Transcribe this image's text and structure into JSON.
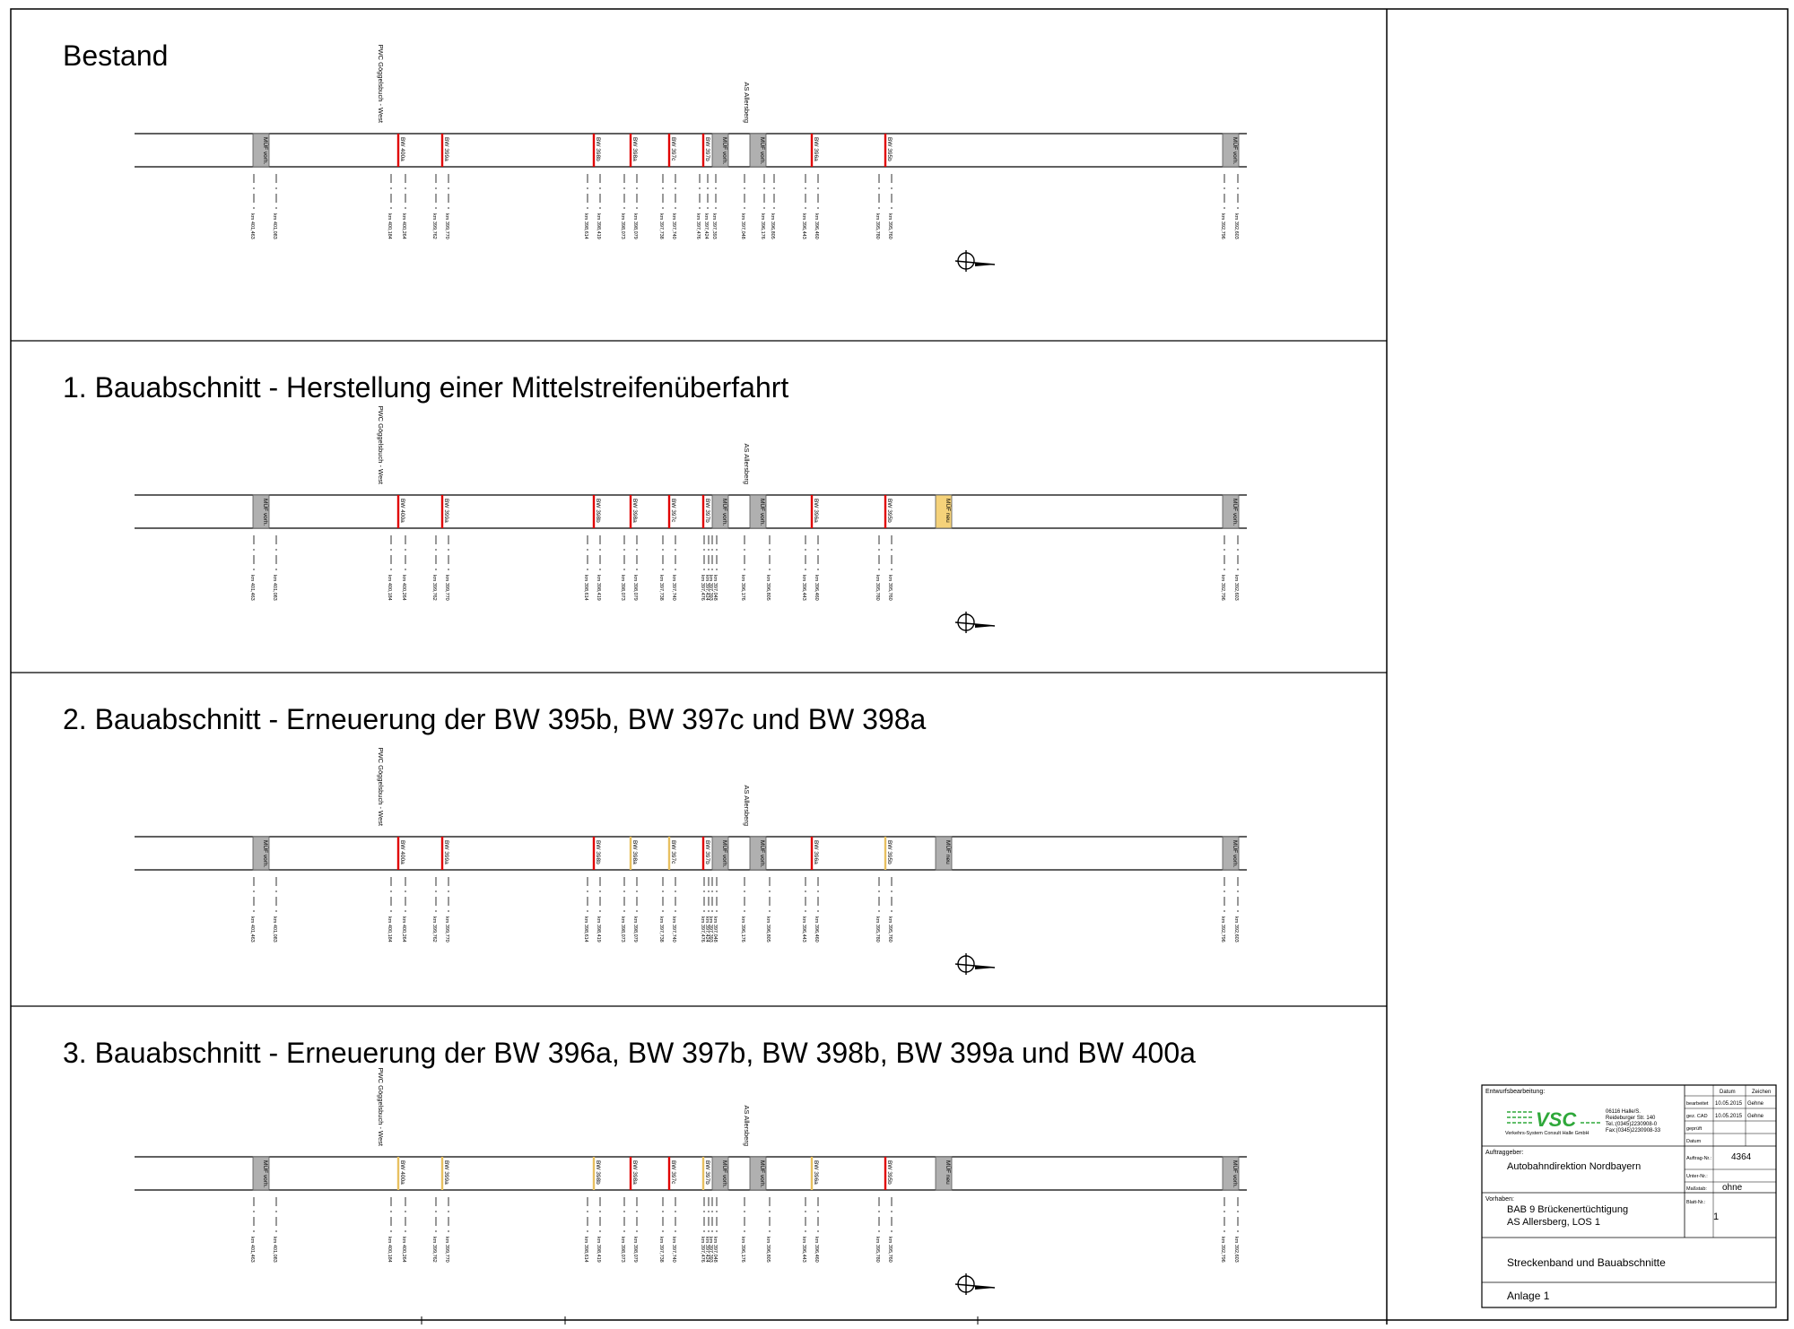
{
  "panels": [
    {
      "title": "Bestand",
      "markers": [
        {
          "label": "MÜF vorh.",
          "type": "muf",
          "fill": "#b0b0b0"
        },
        {
          "label": "BW 400a",
          "type": "bw",
          "color": "#e00000"
        },
        {
          "label": "BW 399a",
          "type": "bw",
          "color": "#e00000"
        },
        {
          "label": "BW 398b",
          "type": "bw",
          "color": "#e00000"
        },
        {
          "label": "BW 398a",
          "type": "bw",
          "color": "#e00000"
        },
        {
          "label": "BW 397c",
          "type": "bw",
          "color": "#e00000"
        },
        {
          "label": "BW 397b",
          "type": "bw",
          "color": "#e00000"
        },
        {
          "label": "MÜF vorh.",
          "type": "muf",
          "fill": "#b0b0b0"
        },
        {
          "label": "MÜF vorh.",
          "type": "muf",
          "fill": "#b0b0b0"
        },
        {
          "label": "BW 396a",
          "type": "bw",
          "color": "#e00000"
        },
        {
          "label": "BW 395b",
          "type": "bw",
          "color": "#e00000"
        },
        {
          "label": "MÜF vorh.",
          "type": "muf",
          "fill": "#b0b0b0"
        }
      ]
    },
    {
      "title": "1. Bauabschnitt - Herstellung einer Mittelstreifenüberfahrt",
      "markers": [
        {
          "label": "MÜF vorh.",
          "type": "muf",
          "fill": "#b0b0b0"
        },
        {
          "label": "BW 400a",
          "type": "bw",
          "color": "#e00000"
        },
        {
          "label": "BW 399a",
          "type": "bw",
          "color": "#e00000"
        },
        {
          "label": "BW 398b",
          "type": "bw",
          "color": "#e00000"
        },
        {
          "label": "BW 398a",
          "type": "bw",
          "color": "#e00000"
        },
        {
          "label": "BW 397c",
          "type": "bw",
          "color": "#e00000"
        },
        {
          "label": "BW 397b",
          "type": "bw",
          "color": "#e00000"
        },
        {
          "label": "MÜF vorh.",
          "type": "muf",
          "fill": "#b0b0b0"
        },
        {
          "label": "MÜF vorh.",
          "type": "muf",
          "fill": "#b0b0b0"
        },
        {
          "label": "BW 396a",
          "type": "bw",
          "color": "#e00000"
        },
        {
          "label": "BW 395b",
          "type": "bw",
          "color": "#e00000"
        },
        {
          "label": "MÜF neu",
          "type": "muf",
          "fill": "#f5d27a"
        },
        {
          "label": "MÜF vorh.",
          "type": "muf",
          "fill": "#b0b0b0"
        }
      ]
    },
    {
      "title": "2. Bauabschnitt - Erneuerung der BW 395b, BW 397c und BW 398a",
      "markers": [
        {
          "label": "MÜF vorh.",
          "type": "muf",
          "fill": "#b0b0b0"
        },
        {
          "label": "BW 400a",
          "type": "bw",
          "color": "#e00000"
        },
        {
          "label": "BW 399a",
          "type": "bw",
          "color": "#e00000"
        },
        {
          "label": "BW 398b",
          "type": "bw",
          "color": "#e00000"
        },
        {
          "label": "BW 398a",
          "type": "bw",
          "color": "#e8c060"
        },
        {
          "label": "BW 397c",
          "type": "bw",
          "color": "#e8c060"
        },
        {
          "label": "BW 397b",
          "type": "bw",
          "color": "#e00000"
        },
        {
          "label": "MÜF vorh.",
          "type": "muf",
          "fill": "#b0b0b0"
        },
        {
          "label": "MÜF vorh.",
          "type": "muf",
          "fill": "#b0b0b0"
        },
        {
          "label": "BW 396a",
          "type": "bw",
          "color": "#e00000"
        },
        {
          "label": "BW 395b",
          "type": "bw",
          "color": "#e8c060"
        },
        {
          "label": "MÜF neu",
          "type": "muf",
          "fill": "#b0b0b0"
        },
        {
          "label": "MÜF vorh.",
          "type": "muf",
          "fill": "#b0b0b0"
        }
      ]
    },
    {
      "title": "3. Bauabschnitt - Erneuerung der BW 396a, BW 397b, BW 398b, BW 399a und BW 400a",
      "markers": [
        {
          "label": "MÜF vorh.",
          "type": "muf",
          "fill": "#b0b0b0"
        },
        {
          "label": "BW 400a",
          "type": "bw",
          "color": "#e8c060"
        },
        {
          "label": "BW 399a",
          "type": "bw",
          "color": "#e8c060"
        },
        {
          "label": "BW 398b",
          "type": "bw",
          "color": "#e8c060"
        },
        {
          "label": "BW 398a",
          "type": "bw",
          "color": "#e00000"
        },
        {
          "label": "BW 397c",
          "type": "bw",
          "color": "#e00000"
        },
        {
          "label": "BW 397b",
          "type": "bw",
          "color": "#e8c060"
        },
        {
          "label": "MÜF vorh.",
          "type": "muf",
          "fill": "#b0b0b0"
        },
        {
          "label": "MÜF vorh.",
          "type": "muf",
          "fill": "#b0b0b0"
        },
        {
          "label": "BW 396a",
          "type": "bw",
          "color": "#e8c060"
        },
        {
          "label": "BW 395b",
          "type": "bw",
          "color": "#e00000"
        },
        {
          "label": "MÜF neu",
          "type": "muf",
          "fill": "#b0b0b0"
        },
        {
          "label": "MÜF vorh.",
          "type": "muf",
          "fill": "#b0b0b0"
        }
      ]
    }
  ],
  "place_labels": [
    "PWC Göggelsbuch - West",
    "AS Allersberg"
  ],
  "km_labels": [
    "km 401,463",
    "km 401,083",
    "km 400,184",
    "km 400,264",
    "km 399,762",
    "km 399,770",
    "km 398,614",
    "km 398,419",
    "km 398,073",
    "km 398,079",
    "km 397,738",
    "km 397,740",
    "km 397,476",
    "km 397,424",
    "km 397,393",
    "km 397,048",
    "km 396,176",
    "km 396,805",
    "km 396,443",
    "km 396,460",
    "km 395,780",
    "km 395,760",
    "km 392,796",
    "km 392,603"
  ],
  "title_block": {
    "entwurf_label": "Entwurfsbearbeitung:",
    "company_logo": "VSC",
    "company_name": "Verkehrs-System Consult Halle GmbH",
    "address1": "06116 Halle/S.",
    "address2": "Reideburger Str. 140",
    "tel": "Tel.:(0345)2230908-0",
    "fax": "Fax:(0345)2230908-33",
    "header_datum": "Datum",
    "header_zeichen": "Zeichen",
    "rows": [
      {
        "k": "bearbeitet",
        "d": "10.05.2015",
        "z": "Gehne"
      },
      {
        "k": "gez. CAD",
        "d": "10.05.2015",
        "z": "Gehne"
      },
      {
        "k": "geprüft",
        "d": "",
        "z": ""
      },
      {
        "k": "Datum",
        "d": "",
        "z": ""
      }
    ],
    "auftraggeber_label": "Auftraggeber:",
    "auftraggeber": "Autobahndirektion Nordbayern",
    "auftrag_label": "Auftrag-Nr.:",
    "auftrag_nr": "4364",
    "unter_label": "Unter-Nr.:",
    "massstab_label": "Maßstab:",
    "massstab": "ohne",
    "vorhaben_label": "Vorhaben:",
    "vorhaben1": "BAB 9 Brückenertüchtigung",
    "vorhaben2": "AS Allersberg, LOS 1",
    "blatt_label": "Blatt-Nr.:",
    "blatt_nr": "1",
    "plan_title": "Streckenband und Bauabschnitte",
    "anlage": "Anlage 1"
  }
}
